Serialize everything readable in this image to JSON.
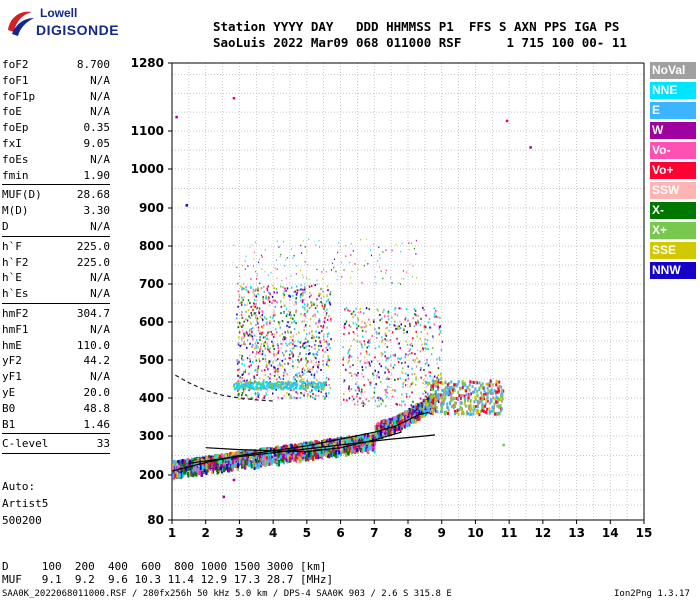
{
  "logo": {
    "top": "Lowell",
    "bottom": "DIGISONDE"
  },
  "header": {
    "line1": "Station YYYY DAY   DDD HHMMSS P1  FFS S AXN PPS IGA PS",
    "line2": "SaoLuis 2022 Mar09 068 011000 RSF      1 715 100 00- 11"
  },
  "params": [
    {
      "label": "foF2",
      "value": "8.700"
    },
    {
      "label": "foF1",
      "value": "N/A"
    },
    {
      "label": "foF1p",
      "value": "N/A"
    },
    {
      "label": "foE",
      "value": "N/A"
    },
    {
      "label": "foEp",
      "value": "0.35"
    },
    {
      "label": "fxI",
      "value": "9.05"
    },
    {
      "label": "foEs",
      "value": "N/A"
    },
    {
      "label": "fmin",
      "value": "1.90"
    },
    {
      "label": "MUF(D)",
      "value": "28.68"
    },
    {
      "label": "M(D)",
      "value": "3.30"
    },
    {
      "label": "D",
      "value": "N/A"
    },
    {
      "label": "h`F",
      "value": "225.0"
    },
    {
      "label": "h`F2",
      "value": "225.0"
    },
    {
      "label": "h`E",
      "value": "N/A"
    },
    {
      "label": "h`Es",
      "value": "N/A"
    },
    {
      "label": "hmF2",
      "value": "304.7"
    },
    {
      "label": "hmF1",
      "value": "N/A"
    },
    {
      "label": "hmE",
      "value": "110.0"
    },
    {
      "label": "yF2",
      "value": "44.2"
    },
    {
      "label": "yF1",
      "value": "N/A"
    },
    {
      "label": "yE",
      "value": "20.0"
    },
    {
      "label": "B0",
      "value": "48.8"
    },
    {
      "label": "B1",
      "value": "1.46"
    },
    {
      "label": "C-level",
      "value": "33"
    }
  ],
  "auto": {
    "line1": "Auto:",
    "line2": "Artist5",
    "line3": "500200"
  },
  "legend": [
    {
      "label": "NoVal",
      "color": "#a0a0a0"
    },
    {
      "label": "NNE",
      "color": "#00e5ff"
    },
    {
      "label": "E",
      "color": "#3cb4ff"
    },
    {
      "label": "W",
      "color": "#a000a0"
    },
    {
      "label": "Vo-",
      "color": "#ff50b4"
    },
    {
      "label": "Vo+",
      "color": "#ff0032"
    },
    {
      "label": "SSW",
      "color": "#ffb4b4"
    },
    {
      "label": "X-",
      "color": "#007800"
    },
    {
      "label": "X+",
      "color": "#78c850"
    },
    {
      "label": "SSE",
      "color": "#d2c800"
    },
    {
      "label": "NNW",
      "color": "#1400c8"
    }
  ],
  "footer": {
    "d_row": "D     100  200  400  600  800 1000 1500 3000 [km]",
    "muf_row": "MUF   9.1  9.2  9.6 10.3 11.4 12.9 17.3 28.7 [MHz]",
    "file_line": "SAA0K_2022068011000.RSF / 280fx256h 50 kHz 5.0 km / DPS-4 SAA0K 903 / 2.6 S 315.8 E",
    "version": "Ion2Png 1.3.17"
  },
  "chart_data": {
    "type": "scatter",
    "title": "",
    "xlabel": "",
    "ylabel": "",
    "xlim": [
      1,
      15
    ],
    "x_ticks": [
      1,
      2,
      3,
      4,
      5,
      6,
      7,
      8,
      9,
      10,
      11,
      12,
      13,
      14,
      15
    ],
    "y_ticks": [
      80,
      200,
      300,
      400,
      500,
      600,
      700,
      800,
      900,
      1000,
      1100,
      1280
    ],
    "y_scale": "nonlinear ionogram height axis",
    "grid": true,
    "legend_position": "right",
    "traces": [
      {
        "name": "virtual height trace (O)",
        "x": [
          1.0,
          2.0,
          3.0,
          4.0,
          5.0,
          6.0,
          7.0,
          7.6,
          8.0,
          8.3,
          8.6
        ],
        "y": [
          210,
          232,
          250,
          262,
          275,
          292,
          310,
          325,
          342,
          355,
          362
        ]
      },
      {
        "name": "virtual height trace (X)",
        "x": [
          1.5,
          2.5,
          3.5,
          4.5,
          5.5,
          6.5,
          7.5,
          8.5,
          8.8
        ],
        "y": [
          230,
          242,
          252,
          262,
          272,
          282,
          292,
          300,
          303
        ]
      },
      {
        "name": "profile (dashed)",
        "x": [
          1.1,
          1.5,
          2.0,
          2.5,
          3.0,
          3.5,
          4.0
        ],
        "y": [
          460,
          440,
          420,
          407,
          400,
          395,
          392
        ]
      },
      {
        "name": "profile (black)",
        "x": [
          2.0,
          3.0,
          4.0,
          5.0,
          6.0,
          7.0,
          7.8
        ],
        "y": [
          270,
          265,
          262,
          260,
          270,
          290,
          310
        ]
      }
    ]
  }
}
